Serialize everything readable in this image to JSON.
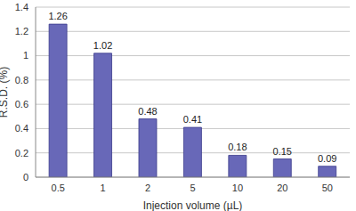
{
  "chart_data": {
    "type": "bar",
    "categories": [
      "0.5",
      "1",
      "2",
      "5",
      "10",
      "20",
      "50"
    ],
    "values": [
      1.26,
      1.02,
      0.48,
      0.41,
      0.18,
      0.15,
      0.09
    ],
    "color": "#6868b8",
    "xlabel": "Injection volume (µL)",
    "ylabel": "R.S.D. (%)",
    "ylim": [
      0,
      1.4
    ],
    "yticks": [
      0,
      0.2,
      0.4,
      0.6,
      0.8,
      1,
      1.2,
      1.4
    ],
    "grid": true,
    "data_labels": true
  }
}
